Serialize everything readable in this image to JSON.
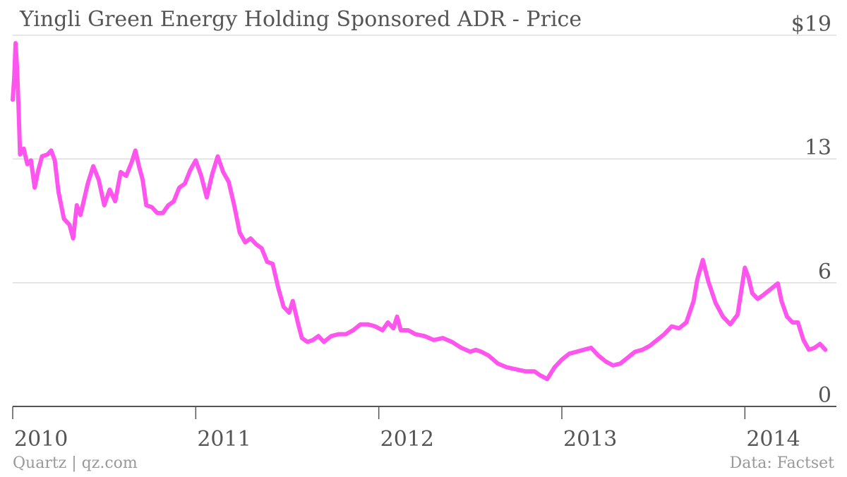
{
  "title": "Yingli Green Energy Holding Sponsored ADR - Price",
  "footer": {
    "source_left": "Quartz | qz.com",
    "source_right": "Data: Factset"
  },
  "colors": {
    "line": "#ff55ee",
    "grid": "#dddddd",
    "axis": "#555555",
    "text": "#555555",
    "muted": "#999999"
  },
  "chart_data": {
    "type": "line",
    "title": "Yingli Green Energy Holding Sponsored ADR - Price",
    "xlabel": "",
    "ylabel": "",
    "ylim": [
      0,
      19
    ],
    "xlim": [
      2010.0,
      2014.5
    ],
    "y_ticks": [
      {
        "value": 0,
        "label": "0"
      },
      {
        "value": 6.33,
        "label": "6"
      },
      {
        "value": 12.67,
        "label": "13"
      },
      {
        "value": 19,
        "label": "$19"
      }
    ],
    "x_ticks": [
      {
        "value": 2010,
        "label": "2010"
      },
      {
        "value": 2011,
        "label": "2011"
      },
      {
        "value": 2012,
        "label": "2012"
      },
      {
        "value": 2013,
        "label": "2013"
      },
      {
        "value": 2014,
        "label": "2014"
      }
    ],
    "grid": true,
    "legend": "none",
    "series": [
      {
        "x": [
          2010.0,
          2010.008,
          2010.016,
          2010.024,
          2010.032,
          2010.04,
          2010.06,
          2010.08,
          2010.1,
          2010.12,
          2010.14,
          2010.16,
          2010.19,
          2010.21,
          2010.23,
          2010.25,
          2010.28,
          2010.31,
          2010.33,
          2010.35,
          2010.37,
          2010.41,
          2010.44,
          2010.47,
          2010.5,
          2010.53,
          2010.56,
          2010.59,
          2010.62,
          2010.65,
          2010.67,
          2010.69,
          2010.71,
          2010.73,
          2010.76,
          2010.79,
          2010.82,
          2010.85,
          2010.88,
          2010.91,
          2010.94,
          2010.97,
          2011.0,
          2011.03,
          2011.06,
          2011.09,
          2011.12,
          2011.15,
          2011.18,
          2011.21,
          2011.24,
          2011.27,
          2011.3,
          2011.33,
          2011.36,
          2011.39,
          2011.42,
          2011.45,
          2011.48,
          2011.51,
          2011.53,
          2011.56,
          2011.58,
          2011.61,
          2011.64,
          2011.67,
          2011.7,
          2011.74,
          2011.78,
          2011.82,
          2011.86,
          2011.9,
          2011.94,
          2011.98,
          2012.02,
          2012.05,
          2012.08,
          2012.1,
          2012.12,
          2012.16,
          2012.2,
          2012.25,
          2012.3,
          2012.35,
          2012.4,
          2012.45,
          2012.5,
          2012.53,
          2012.56,
          2012.6,
          2012.65,
          2012.7,
          2012.75,
          2012.8,
          2012.85,
          2012.88,
          2012.92,
          2012.96,
          2013.0,
          2013.04,
          2013.08,
          2013.12,
          2013.16,
          2013.2,
          2013.24,
          2013.28,
          2013.32,
          2013.36,
          2013.4,
          2013.44,
          2013.48,
          2013.52,
          2013.56,
          2013.6,
          2013.64,
          2013.68,
          2013.72,
          2013.74,
          2013.77,
          2013.8,
          2013.84,
          2013.88,
          2013.92,
          2013.96,
          2014.0,
          2014.02,
          2014.04,
          2014.07,
          2014.1,
          2014.14,
          2014.18,
          2014.2,
          2014.23,
          2014.26,
          2014.29,
          2014.32,
          2014.35,
          2014.38,
          2014.41,
          2014.44
        ],
        "values": [
          15.7,
          16.8,
          18.6,
          17.3,
          15.3,
          12.9,
          13.2,
          12.4,
          12.6,
          11.2,
          12.1,
          12.8,
          12.9,
          13.1,
          12.6,
          11.0,
          9.6,
          9.3,
          8.6,
          10.3,
          9.8,
          11.4,
          12.3,
          11.6,
          10.3,
          11.1,
          10.5,
          12.0,
          11.8,
          12.5,
          13.1,
          12.3,
          11.6,
          10.3,
          10.2,
          9.9,
          9.9,
          10.3,
          10.5,
          11.2,
          11.4,
          12.1,
          12.6,
          11.8,
          10.7,
          11.9,
          12.8,
          12.0,
          11.5,
          10.3,
          8.9,
          8.4,
          8.6,
          8.3,
          8.1,
          7.4,
          7.3,
          6.1,
          5.1,
          4.8,
          5.4,
          4.2,
          3.5,
          3.3,
          3.4,
          3.6,
          3.3,
          3.6,
          3.7,
          3.7,
          3.9,
          4.2,
          4.2,
          4.1,
          3.9,
          4.3,
          4.0,
          4.6,
          3.9,
          3.9,
          3.7,
          3.6,
          3.4,
          3.5,
          3.3,
          3.0,
          2.8,
          2.9,
          2.8,
          2.6,
          2.2,
          2.0,
          1.9,
          1.8,
          1.8,
          1.6,
          1.4,
          2.0,
          2.4,
          2.7,
          2.8,
          2.9,
          3.0,
          2.6,
          2.3,
          2.1,
          2.2,
          2.5,
          2.8,
          2.9,
          3.1,
          3.4,
          3.7,
          4.1,
          4.0,
          4.3,
          5.4,
          6.5,
          7.5,
          6.4,
          5.3,
          4.6,
          4.2,
          4.7,
          7.1,
          6.6,
          5.8,
          5.5,
          5.7,
          6.0,
          6.3,
          5.4,
          4.6,
          4.3,
          4.3,
          3.4,
          2.9,
          3.0,
          3.2,
          2.9
        ]
      }
    ]
  }
}
